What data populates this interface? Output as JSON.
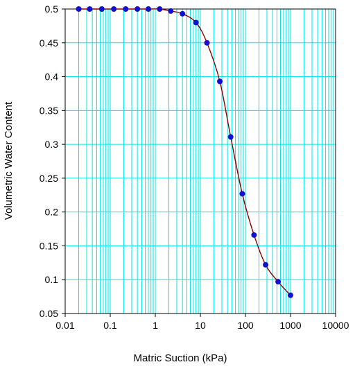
{
  "chart_data": {
    "type": "scatter",
    "xlabel": "Matric Suction (kPa)",
    "ylabel": "Volumetric Water Content",
    "x_scale": "log",
    "xlim": [
      0.01,
      10000
    ],
    "ylim": [
      0.05,
      0.5
    ],
    "x_ticks": [
      "0.01",
      "0.1",
      "1",
      "10",
      "100",
      "1000",
      "10000"
    ],
    "y_ticks": [
      "0.05",
      "0.1",
      "0.15",
      "0.2",
      "0.25",
      "0.3",
      "0.35",
      "0.4",
      "0.45",
      "0.5"
    ],
    "grid": true,
    "colors": {
      "grid": "#00e5e5",
      "curve": "#8b0000",
      "points": "#1010d0",
      "axis": "#000000"
    },
    "series": [
      {
        "points": [
          {
            "x": 0.02,
            "y": 0.5
          },
          {
            "x": 0.035,
            "y": 0.5
          },
          {
            "x": 0.065,
            "y": 0.5
          },
          {
            "x": 0.12,
            "y": 0.5
          },
          {
            "x": 0.22,
            "y": 0.5
          },
          {
            "x": 0.4,
            "y": 0.5
          },
          {
            "x": 0.7,
            "y": 0.5
          },
          {
            "x": 1.25,
            "y": 0.5
          },
          {
            "x": 2.2,
            "y": 0.497
          },
          {
            "x": 4.0,
            "y": 0.493
          },
          {
            "x": 8.0,
            "y": 0.48
          },
          {
            "x": 14.0,
            "y": 0.45
          },
          {
            "x": 27.0,
            "y": 0.393
          },
          {
            "x": 47.0,
            "y": 0.311
          },
          {
            "x": 85.0,
            "y": 0.227
          },
          {
            "x": 155.0,
            "y": 0.166
          },
          {
            "x": 280.0,
            "y": 0.122
          },
          {
            "x": 530.0,
            "y": 0.097
          },
          {
            "x": 1000.0,
            "y": 0.077
          }
        ]
      }
    ]
  }
}
